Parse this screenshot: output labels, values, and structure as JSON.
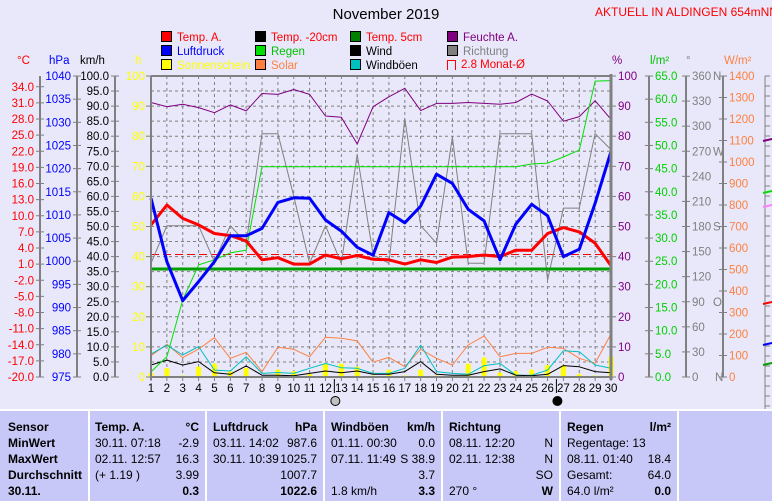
{
  "header": {
    "title": "November 2019",
    "location": "AKTUELL IN ALDINGEN 654mNN"
  },
  "legend": [
    {
      "label": "Temp. A.",
      "color": "#ff0000",
      "text_color": "#ff0000"
    },
    {
      "label": "Temp. -20cm",
      "color": "#000000",
      "text_color": "#ff0000"
    },
    {
      "label": "Temp. 5cm",
      "color": "#008000",
      "text_color": "#ff0000"
    },
    {
      "label": "Feuchte A.",
      "color": "#800080",
      "text_color": "#800080"
    },
    {
      "label": "Luftdruck",
      "color": "#0000ff",
      "text_color": "#0000ff"
    },
    {
      "label": "Regen",
      "color": "#00e000",
      "text_color": "#00c000"
    },
    {
      "label": "Wind",
      "color": "#000000",
      "text_color": "#000000"
    },
    {
      "label": "Richtung",
      "color": "#808080",
      "text_color": "#808080"
    },
    {
      "label": "Sonnenschein",
      "color": "#ffff00",
      "text_color": "#ffff00"
    },
    {
      "label": "Solar",
      "color": "#ff8040",
      "text_color": "#ff8040"
    },
    {
      "label": "Windböen",
      "color": "#00c0c0",
      "text_color": "#000000"
    },
    {
      "label": "2.8 Monat-Ø",
      "color": "#ff0000",
      "text_color": "#ff0000"
    }
  ],
  "units": {
    "temp": "°C",
    "pressure": "hPa",
    "wind": "km/h",
    "sun": "h",
    "humidity": "%",
    "rain": "l/m²",
    "direction": "°",
    "solar": "W/m²"
  },
  "chart_data": {
    "type": "line",
    "title": "November 2019",
    "x": [
      1,
      2,
      3,
      4,
      5,
      6,
      7,
      8,
      9,
      10,
      11,
      12,
      13,
      14,
      15,
      16,
      17,
      18,
      19,
      20,
      21,
      22,
      23,
      24,
      25,
      26,
      27,
      28,
      29,
      30
    ],
    "axes": {
      "temp": {
        "range": [
          -20,
          36
        ],
        "ticks": [
          "-20.0",
          "-17.0",
          "-14.0",
          "-11.0",
          "-8.0",
          "-5.0",
          "-2.0",
          "1.0",
          "4.0",
          "7.0",
          "10.0",
          "13.0",
          "16.0",
          "19.0",
          "22.0",
          "25.0",
          "28.0",
          "31.0",
          "34.0"
        ]
      },
      "pressure": {
        "range": [
          975,
          1040
        ],
        "ticks": [
          "975",
          "980",
          "985",
          "990",
          "995",
          "1000",
          "1005",
          "1010",
          "1015",
          "1020",
          "1025",
          "1030",
          "1035",
          "1040"
        ]
      },
      "wind": {
        "range": [
          0,
          100
        ],
        "ticks": [
          "0.0",
          "5.0",
          "10.0",
          "15.0",
          "20.0",
          "25.0",
          "30.0",
          "35.0",
          "40.0",
          "45.0",
          "50.0",
          "55.0",
          "60.0",
          "65.0",
          "70.0",
          "75.0",
          "80.0",
          "85.0",
          "90.0",
          "95.0",
          "100.0"
        ]
      },
      "sun": {
        "range": [
          0,
          100
        ],
        "ticks": [
          "0",
          "10",
          "20",
          "30",
          "40",
          "50",
          "60",
          "70",
          "80",
          "90",
          "100"
        ]
      },
      "humidity": {
        "range": [
          0,
          100
        ],
        "ticks": [
          "0",
          "10",
          "20",
          "30",
          "40",
          "50",
          "60",
          "70",
          "80",
          "90",
          "100"
        ]
      },
      "rain": {
        "range": [
          0,
          65
        ],
        "ticks": [
          "0.0",
          "5.0",
          "10.0",
          "15.0",
          "20.0",
          "25.0",
          "30.0",
          "35.0",
          "40.0",
          "45.0",
          "50.0",
          "55.0",
          "60.0",
          "65.0"
        ]
      },
      "direction": {
        "range": [
          0,
          360
        ],
        "ticks": [
          "0",
          "30",
          "60",
          "90",
          "120",
          "150",
          "180",
          "210",
          "240",
          "270",
          "300",
          "330",
          "360"
        ],
        "compass": {
          "0": "N",
          "90": "O",
          "180": "S",
          "270": "W",
          "360": "N"
        }
      },
      "solar": {
        "range": [
          0,
          1400
        ],
        "ticks": [
          "0",
          "100",
          "200",
          "300",
          "400",
          "500",
          "600",
          "700",
          "800",
          "900",
          "1000",
          "1100",
          "1200",
          "1300",
          "1400"
        ]
      }
    },
    "series": [
      {
        "name": "Temp. A.",
        "axis": "temp",
        "color": "#ff0000",
        "values": [
          8.3,
          12.0,
          9.5,
          8.3,
          6.7,
          6.3,
          5.3,
          1.8,
          2.2,
          1.0,
          1.0,
          2.7,
          2.0,
          2.6,
          1.9,
          1.8,
          1.0,
          1.8,
          1.3,
          2.3,
          2.4,
          2.7,
          2.4,
          3.6,
          3.6,
          6.7,
          7.8,
          7.0,
          4.9,
          0.7
        ]
      },
      {
        "name": "Temp. 5cm",
        "axis": "temp",
        "color": "#00a000",
        "values": [
          0.1,
          0.1,
          0.1,
          0.1,
          0.1,
          0.1,
          0.1,
          0.1,
          0.1,
          0.1,
          0.1,
          0.1,
          0.1,
          0.1,
          0.1,
          0.1,
          0.1,
          0.1,
          0.1,
          0.1,
          0.1,
          0.1,
          0.1,
          0.1,
          0.1,
          0.1,
          0.1,
          0.1,
          0.1,
          0.1
        ]
      },
      {
        "name": "Luftdruck",
        "axis": "pressure",
        "color": "#0000ff",
        "values": [
          1013.6,
          999.9,
          991.5,
          995.6,
          999.9,
          1005.5,
          1005.5,
          1007.1,
          1012.7,
          1013.7,
          1013.6,
          1008.9,
          1006.5,
          1003.0,
          1001.3,
          1010.5,
          1008.3,
          1011.9,
          1018.8,
          1016.8,
          1011.2,
          1008.7,
          1000.3,
          1008.0,
          1012.3,
          1009.8,
          1001.0,
          1002.6,
          1012.5,
          1023.7
        ]
      },
      {
        "name": "Feuchte A.",
        "axis": "humidity",
        "color": "#800080",
        "values": [
          91.2,
          89.8,
          90.6,
          89.5,
          87.8,
          90.4,
          88.4,
          94.2,
          93.9,
          95.5,
          93.9,
          86.7,
          86.3,
          77.4,
          89.8,
          93.1,
          95.9,
          88.5,
          90.9,
          90.9,
          91.2,
          90.9,
          90.6,
          91.2,
          94.0,
          91.7,
          85.0,
          86.5,
          91.8,
          85.6
        ]
      },
      {
        "name": "Regen",
        "axis": "rain",
        "color": "#00e000",
        "values": [
          1.1,
          4.4,
          16.6,
          24.2,
          25.3,
          26.8,
          27.4,
          45.4,
          45.4,
          45.4,
          45.4,
          45.4,
          45.4,
          45.4,
          45.4,
          45.4,
          45.4,
          45.4,
          45.4,
          45.4,
          45.4,
          45.4,
          45.4,
          45.4,
          46.0,
          46.2,
          47.5,
          49.0,
          63.9,
          64.0
        ]
      },
      {
        "name": "Richtung",
        "axis": "direction",
        "color": "#808080",
        "values": [
          136,
          181,
          181,
          181,
          138,
          181,
          160,
          291,
          291,
          216,
          136,
          181,
          136,
          266,
          146,
          136,
          309,
          181,
          160,
          287,
          136,
          136,
          291,
          291,
          291,
          116,
          202,
          202,
          291,
          272
        ]
      },
      {
        "name": "Solar",
        "axis": "solar",
        "color": "#ff8040",
        "values": [
          99,
          152,
          90,
          130,
          183,
          87,
          115,
          25,
          138,
          129,
          94,
          185,
          180,
          168,
          69,
          91,
          48,
          129,
          87,
          56,
          149,
          191,
          94,
          110,
          110,
          138,
          133,
          87,
          64,
          200
        ]
      },
      {
        "name": "Windböen",
        "axis": "wind",
        "color": "#00c0c0",
        "values": [
          7.6,
          10.6,
          7.3,
          10.1,
          2.3,
          2.0,
          6.7,
          1.2,
          1.5,
          1.2,
          2.9,
          4.5,
          3.1,
          2.9,
          1.2,
          1.2,
          2.9,
          10.6,
          1.8,
          1.2,
          0.9,
          3.8,
          4.5,
          0.6,
          0.6,
          2.3,
          8.7,
          8.4,
          4.0,
          2.9
        ]
      },
      {
        "name": "Wind",
        "axis": "wind",
        "color": "#000000",
        "values": [
          4.0,
          5.6,
          4.0,
          5.1,
          1.4,
          0.9,
          3.7,
          0.6,
          0.6,
          0.4,
          1.2,
          2.0,
          1.4,
          2.0,
          0.9,
          0.9,
          1.8,
          5.1,
          0.9,
          0.6,
          0.6,
          1.8,
          2.7,
          0.6,
          0.4,
          0.9,
          3.8,
          3.4,
          1.8,
          1.4
        ]
      }
    ],
    "bars": {
      "name": "Sonnenschein",
      "axis": "sun",
      "color": "#ffff00",
      "values": [
        1.5,
        3,
        0.5,
        3.5,
        4.5,
        2,
        3,
        0,
        2.5,
        2,
        1,
        4.5,
        4.5,
        3.5,
        0.5,
        2.5,
        0.5,
        2.5,
        0.5,
        0.3,
        4.5,
        6.5,
        1.5,
        2,
        2.5,
        4,
        4,
        1,
        0.5,
        7
      ]
    },
    "reference_line": {
      "name": "2.8 Monat-Ø",
      "axis": "temp",
      "value": 2.8
    },
    "moon_phases": [
      {
        "day": 13,
        "phase": "full-moon"
      },
      {
        "day": 27,
        "phase": "new-moon"
      }
    ]
  },
  "table": {
    "columns": [
      {
        "title": "Sensor",
        "unit": ""
      },
      {
        "title": "Temp. A.",
        "unit": "°C"
      },
      {
        "title": "Luftdruck",
        "unit": "hPa"
      },
      {
        "title": "Windböen",
        "unit": "km/h"
      },
      {
        "title": "Richtung",
        "unit": ""
      },
      {
        "title": "Regen",
        "unit": "l/m²"
      }
    ],
    "rows": [
      {
        "label": "MinWert",
        "cells": [
          [
            "30.11.  07:18",
            "-2.9"
          ],
          [
            "03.11.  14:02",
            "987.6"
          ],
          [
            "01.11.  00:30",
            "0.0"
          ],
          [
            "08.11.  12:20",
            "N"
          ],
          [
            "Regentage: 13",
            ""
          ]
        ]
      },
      {
        "label": "MaxWert",
        "cells": [
          [
            "02.11.  12:57",
            "16.3"
          ],
          [
            "30.11.  10:39",
            "1025.7"
          ],
          [
            "07.11.  11:49",
            "S 38.9"
          ],
          [
            "02.11.  12:38",
            "N"
          ],
          [
            "08.11.  01:40",
            "18.4"
          ]
        ]
      },
      {
        "label": "Durchschnitt",
        "cells": [
          [
            "(+ 1.19 )",
            "3.99"
          ],
          [
            "",
            "1007.7"
          ],
          [
            "",
            "3.7"
          ],
          [
            "",
            "SO"
          ],
          [
            "Gesamt:",
            "64.0"
          ]
        ]
      },
      {
        "label": "30.11.",
        "cells": [
          [
            "",
            "0.3"
          ],
          [
            "",
            "1022.6"
          ],
          [
            "1.8 km/h",
            "3.3"
          ],
          [
            "270 °",
            "W"
          ],
          [
            "64.0 l/m²",
            "0.0"
          ]
        ]
      }
    ]
  }
}
